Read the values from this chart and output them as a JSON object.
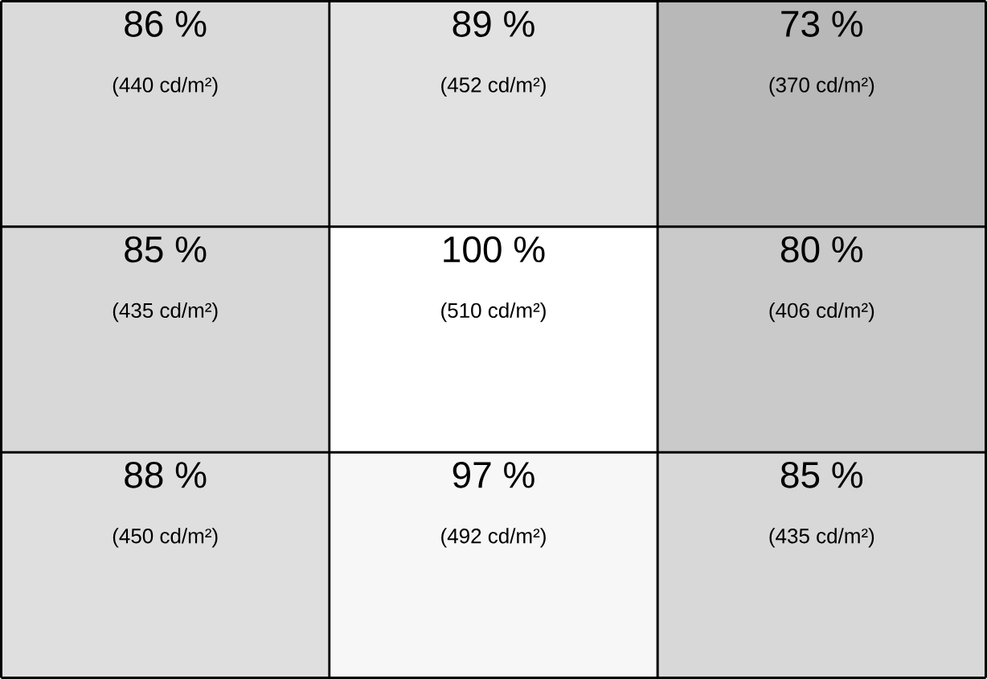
{
  "chart_data": {
    "type": "heatmap",
    "categories": [
      null,
      null,
      null
    ],
    "y_categories": [
      null,
      null,
      null
    ],
    "cells": [
      [
        86,
        89,
        73
      ],
      [
        85,
        100,
        80
      ],
      [
        88,
        97,
        85
      ]
    ],
    "cell_labels": [
      [
        "86 %",
        "89 %",
        "73 %"
      ],
      [
        "85 %",
        "100 %",
        "80 %"
      ],
      [
        "88 %",
        "97 %",
        "85 %"
      ]
    ],
    "annotations": [
      "(440 cd/m²)",
      "(452 cd/m²)",
      "(370 cd/m²)",
      "(435 cd/m²)",
      "(510 cd/m²)",
      "(406 cd/m²)",
      "(450 cd/m²)",
      "(492 cd/m²)",
      "(435 cd/m²)"
    ]
  }
}
